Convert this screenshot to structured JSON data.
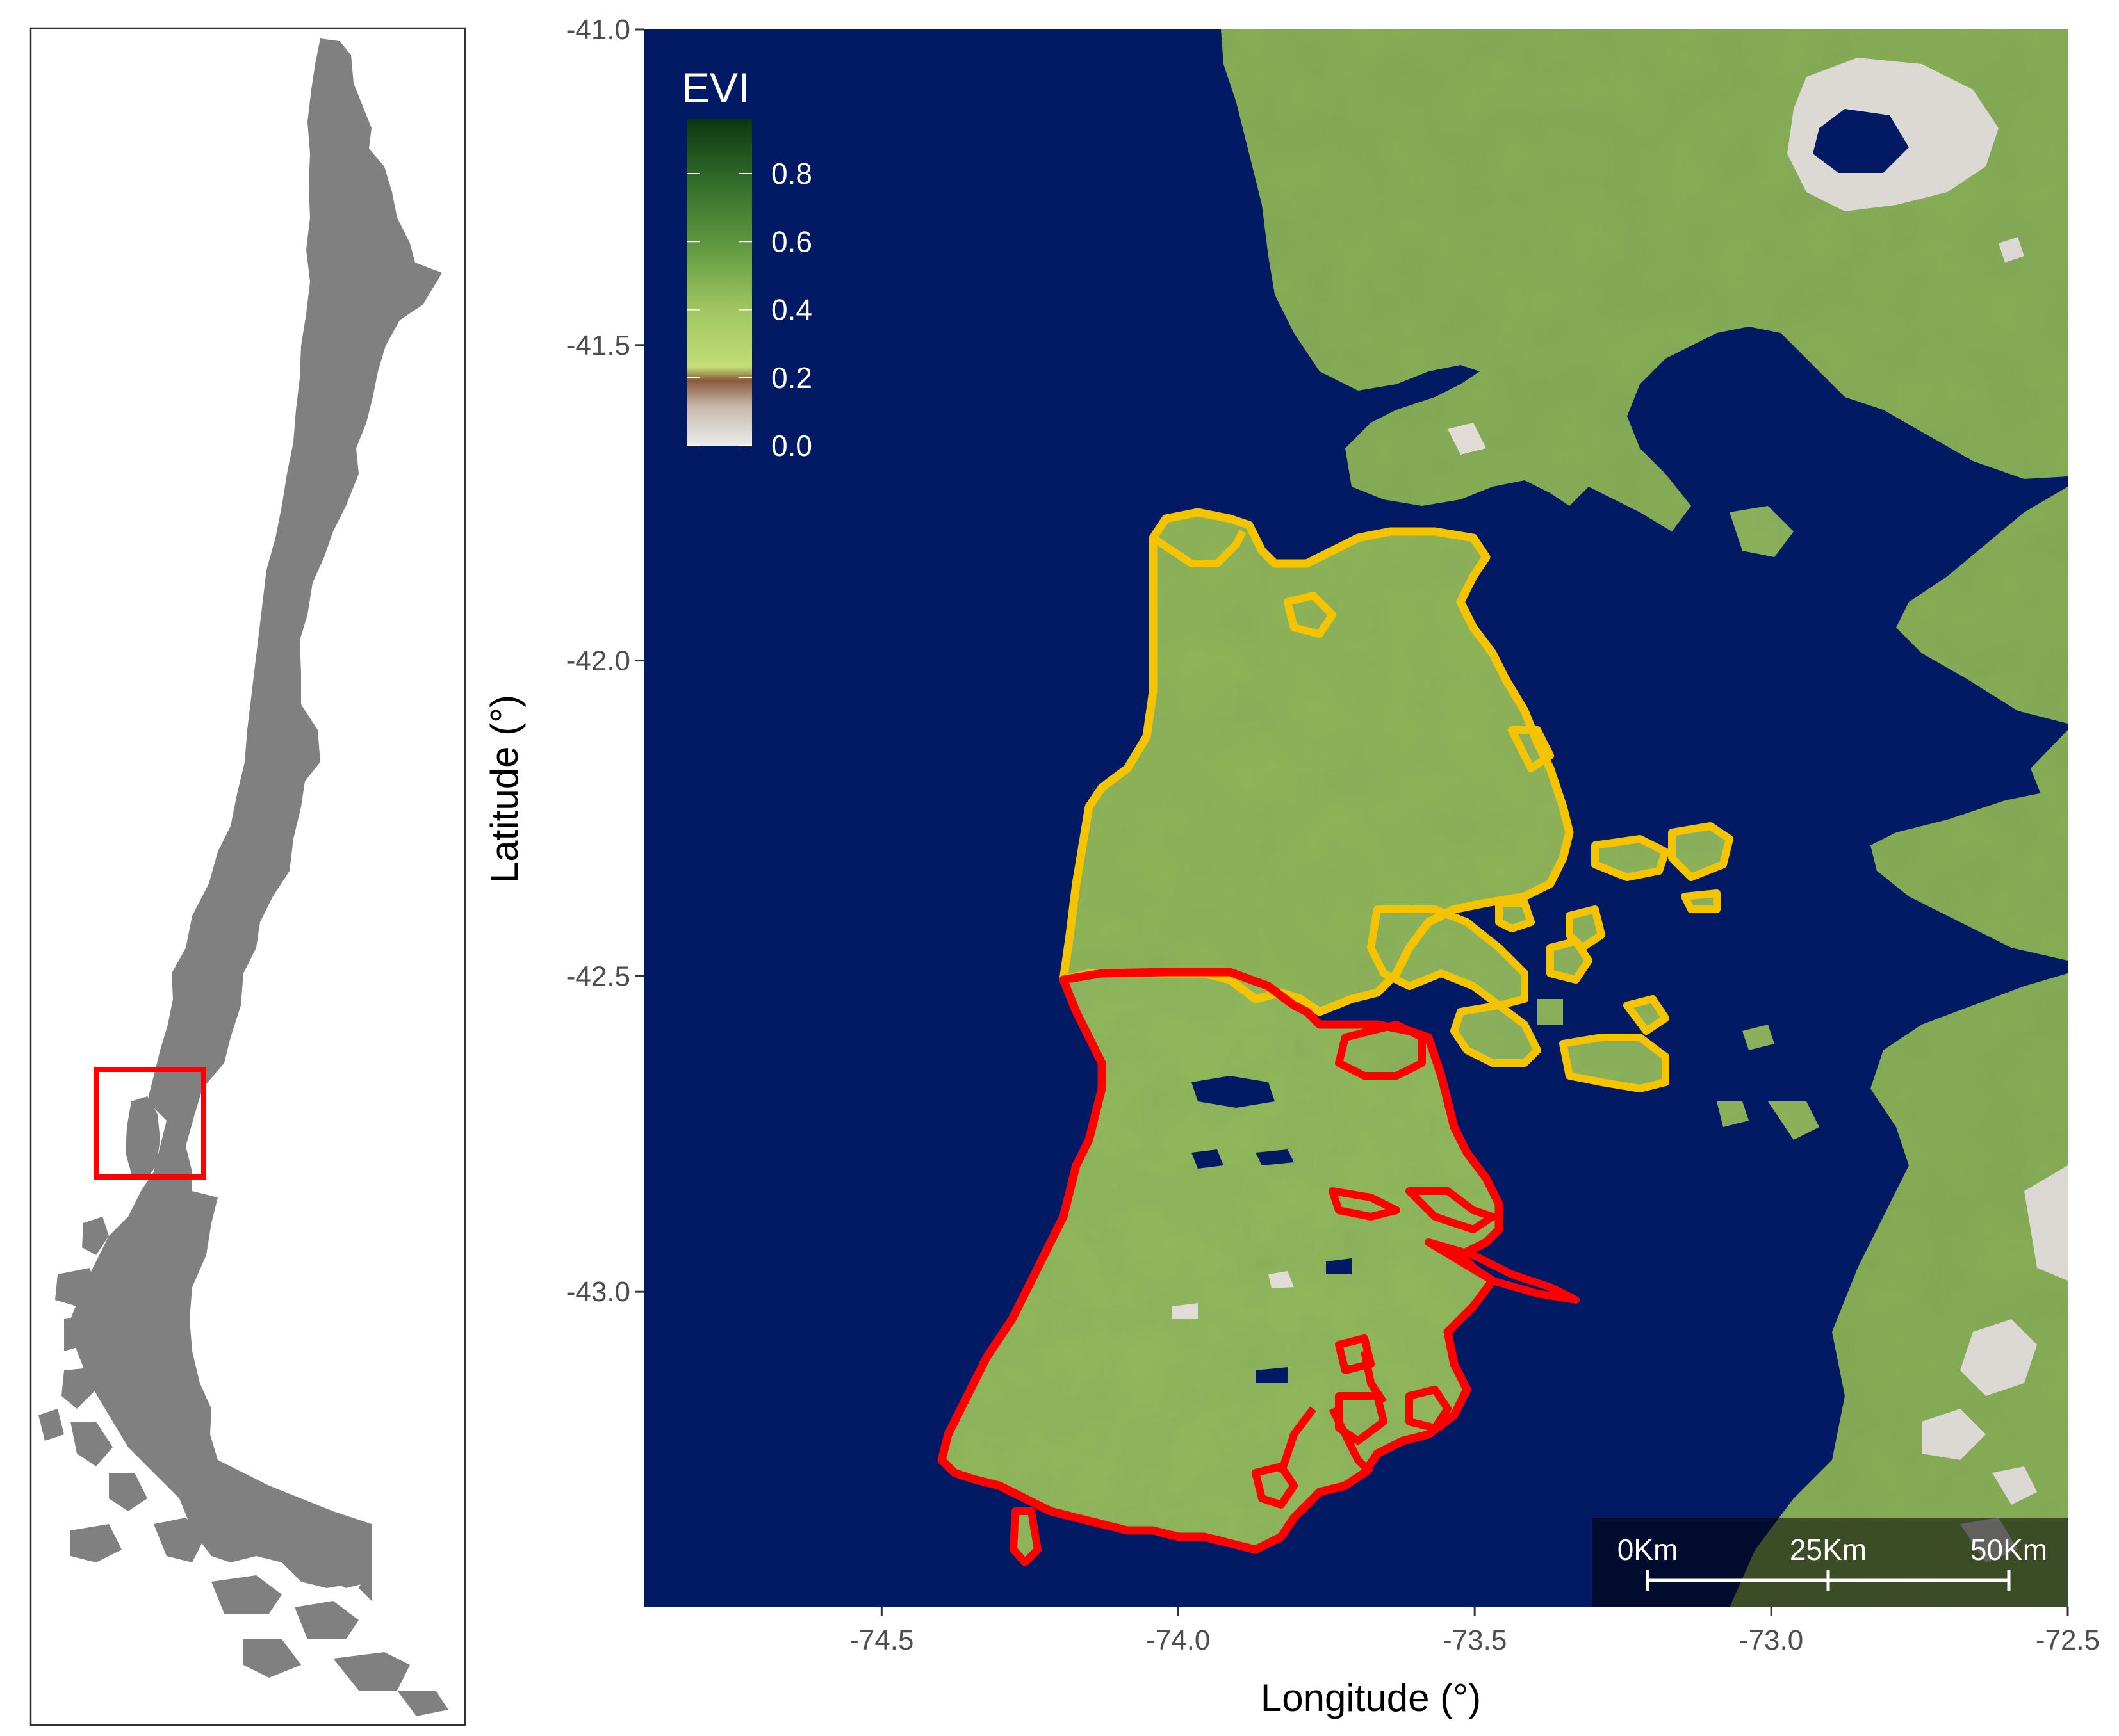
{
  "inset": {
    "country_fill": "#808080",
    "locator_box_color": "#ff0000"
  },
  "main_map": {
    "xlabel": "Longitude (°)",
    "ylabel": "Latitude (°)",
    "x_ticks": [
      {
        "value": -74.5,
        "label": "-74.5"
      },
      {
        "value": -74.0,
        "label": "-74.0"
      },
      {
        "value": -73.5,
        "label": "-73.5"
      },
      {
        "value": -73.0,
        "label": "-73.0"
      },
      {
        "value": -72.5,
        "label": "-72.5"
      }
    ],
    "y_ticks": [
      {
        "value": -41.0,
        "label": "-41.0"
      },
      {
        "value": -41.5,
        "label": "-41.5"
      },
      {
        "value": -42.0,
        "label": "-42.0"
      },
      {
        "value": -42.5,
        "label": "-42.5"
      },
      {
        "value": -43.0,
        "label": "-43.0"
      }
    ],
    "xlim": [
      -74.9,
      -72.5
    ],
    "ylim": [
      -43.5,
      -41.0
    ],
    "sea_color": "#021a64",
    "land_color": "#8fb556",
    "north_region_outline_color": "#f5c400",
    "south_region_outline_color": "#ff0000"
  },
  "legend": {
    "title": "EVI",
    "ticks": [
      "0.8",
      "0.6",
      "0.4",
      "0.2",
      "0.0"
    ],
    "tick_values": [
      0.8,
      0.6,
      0.4,
      0.2,
      0.0
    ],
    "range": [
      0.0,
      0.96
    ],
    "colors": [
      "#e8e4e2",
      "#8a5a3c",
      "#b8d96e",
      "#5f9640",
      "#0f3b12"
    ]
  },
  "scale_bar": {
    "labels": [
      "0Km",
      "25Km",
      "50Km"
    ]
  }
}
